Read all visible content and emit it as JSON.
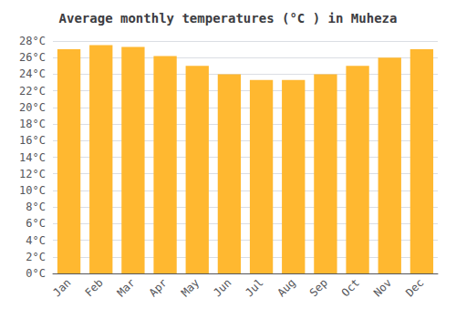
{
  "chart_data": {
    "type": "bar",
    "title": "Average monthly temperatures (°C ) in Muheza",
    "categories": [
      "Jan",
      "Feb",
      "Mar",
      "Apr",
      "May",
      "Jun",
      "Jul",
      "Aug",
      "Sep",
      "Oct",
      "Nov",
      "Dec"
    ],
    "values": [
      27.0,
      27.5,
      27.3,
      26.2,
      25.0,
      24.0,
      23.3,
      23.3,
      24.0,
      25.0,
      26.0,
      27.0
    ],
    "color": "#FFB830",
    "ylim": [
      0,
      28
    ],
    "yticks": [
      {
        "value": 0,
        "label": "0°C"
      },
      {
        "value": 2,
        "label": "2°C"
      },
      {
        "value": 4,
        "label": "4°C"
      },
      {
        "value": 6,
        "label": "6°C"
      },
      {
        "value": 8,
        "label": "8°C"
      },
      {
        "value": 10,
        "label": "10°C"
      },
      {
        "value": 12,
        "label": "12°C"
      },
      {
        "value": 14,
        "label": "14°C"
      },
      {
        "value": 16,
        "label": "16°C"
      },
      {
        "value": 18,
        "label": "18°C"
      },
      {
        "value": 20,
        "label": "20°C"
      },
      {
        "value": 22,
        "label": "22°C"
      },
      {
        "value": 24,
        "label": "24°C"
      },
      {
        "value": 26,
        "label": "26°C"
      },
      {
        "value": 28,
        "label": "28°C"
      }
    ],
    "grid": true
  }
}
